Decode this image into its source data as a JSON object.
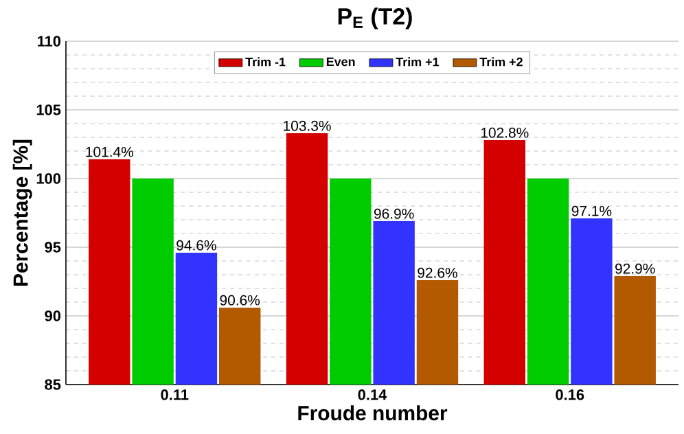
{
  "chart_data": {
    "type": "bar",
    "title": "P$_{E}$ (T2)",
    "xlabel": "Froude number",
    "ylabel": "Percentage [%]",
    "categories": [
      "0.11",
      "0.14",
      "0.16"
    ],
    "series": [
      {
        "name": "Trim -1",
        "color": "#d40000",
        "values": [
          101.4,
          103.3,
          102.8
        ],
        "value_labels": [
          "101.4%",
          "103.3%",
          "102.8%"
        ]
      },
      {
        "name": "Even",
        "color": "#00cc00",
        "values": [
          100,
          100,
          100
        ]
      },
      {
        "name": "Trim +1",
        "color": "#3333ff",
        "values": [
          94.6,
          96.9,
          97.1
        ],
        "value_labels": [
          "94.6%",
          "96.9%",
          "97.1%"
        ]
      },
      {
        "name": "Trim +2",
        "color": "#b35900",
        "values": [
          90.6,
          92.6,
          92.9
        ],
        "value_labels": [
          "90.6%",
          "92.6%",
          "92.9%"
        ]
      }
    ],
    "ylim": [
      85,
      110
    ],
    "yticks": [
      85,
      90,
      95,
      100,
      105,
      110
    ],
    "grid": "y",
    "legend": "top"
  }
}
